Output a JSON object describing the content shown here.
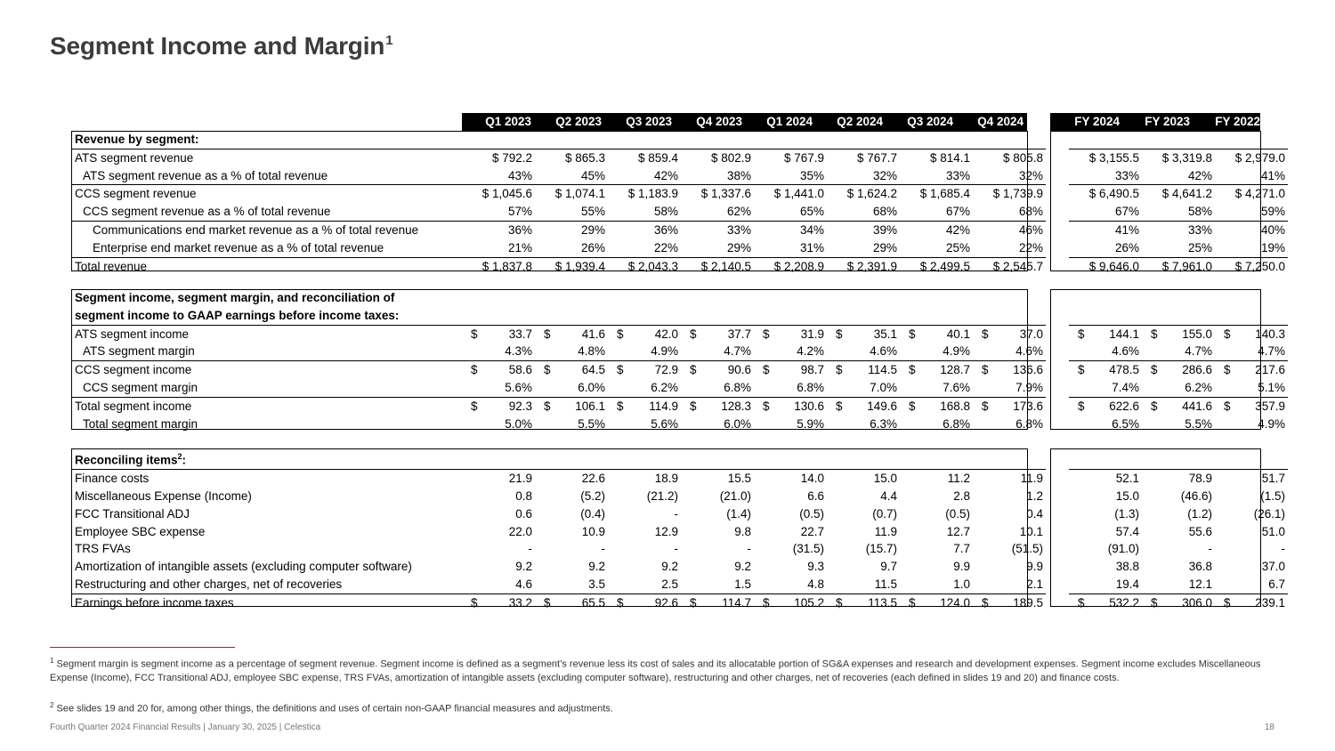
{
  "title": "Segment Income and Margin",
  "title_sup": "1",
  "columns_q": [
    "Q1 2023",
    "Q2 2023",
    "Q3 2023",
    "Q4 2023",
    "Q1 2024",
    "Q2 2024",
    "Q3 2024",
    "Q4 2024"
  ],
  "columns_fy": [
    "FY 2024",
    "FY 2023",
    "FY 2022"
  ],
  "sections": [
    {
      "rows": [
        {
          "label": "Revenue by segment:",
          "bold": true,
          "cells": null
        },
        {
          "label": "ATS segment revenue",
          "dollar": true,
          "top": true,
          "q": [
            "792.2",
            "865.3",
            "859.4",
            "802.9",
            "767.9",
            "767.7",
            "814.1",
            "805.8"
          ],
          "fy": [
            "3,155.5",
            "3,319.8",
            "2,979.0"
          ]
        },
        {
          "label": "ATS segment revenue as a % of total revenue",
          "indent": 1,
          "q": [
            "43%",
            "45%",
            "42%",
            "38%",
            "35%",
            "32%",
            "33%",
            "32%"
          ],
          "fy": [
            "33%",
            "42%",
            "41%"
          ]
        },
        {
          "label": "CCS segment revenue",
          "dollar": true,
          "top": true,
          "q": [
            "1,045.6",
            "1,074.1",
            "1,183.9",
            "1,337.6",
            "1,441.0",
            "1,624.2",
            "1,685.4",
            "1,739.9"
          ],
          "fy": [
            "6,490.5",
            "4,641.2",
            "4,271.0"
          ]
        },
        {
          "label": "CCS segment revenue as a % of total revenue",
          "indent": 1,
          "q": [
            "57%",
            "55%",
            "58%",
            "62%",
            "65%",
            "68%",
            "67%",
            "68%"
          ],
          "fy": [
            "67%",
            "58%",
            "59%"
          ]
        },
        {
          "label": "Communications end market revenue as a % of total revenue",
          "indent": 2,
          "top": true,
          "q": [
            "36%",
            "29%",
            "36%",
            "33%",
            "34%",
            "39%",
            "42%",
            "46%"
          ],
          "fy": [
            "41%",
            "33%",
            "40%"
          ]
        },
        {
          "label": "Enterprise end market revenue as a % of total revenue",
          "indent": 2,
          "q": [
            "21%",
            "26%",
            "22%",
            "29%",
            "31%",
            "29%",
            "25%",
            "22%"
          ],
          "fy": [
            "26%",
            "25%",
            "19%"
          ]
        },
        {
          "label": "Total revenue",
          "dollar": true,
          "top": true,
          "q": [
            "1,837.8",
            "1,939.4",
            "2,043.3",
            "2,140.5",
            "2,208.9",
            "2,391.9",
            "2,499.5",
            "2,545.7"
          ],
          "fy": [
            "9,646.0",
            "7,961.0",
            "7,250.0"
          ]
        }
      ]
    },
    {
      "rows": [
        {
          "label": "Segment income, segment margin, and reconciliation of",
          "bold": true,
          "cells": null
        },
        {
          "label": "segment income to GAAP earnings before income taxes:",
          "bold": true,
          "cells": null
        },
        {
          "label": "ATS segment income",
          "sepdollar": true,
          "top": true,
          "q": [
            "33.7",
            "41.6",
            "42.0",
            "37.7",
            "31.9",
            "35.1",
            "40.1",
            "37.0"
          ],
          "fy": [
            "144.1",
            "155.0",
            "140.3"
          ]
        },
        {
          "label": "ATS segment margin",
          "indent": 1,
          "q": [
            "4.3%",
            "4.8%",
            "4.9%",
            "4.7%",
            "4.2%",
            "4.6%",
            "4.9%",
            "4.6%"
          ],
          "fy": [
            "4.6%",
            "4.7%",
            "4.7%"
          ]
        },
        {
          "label": "CCS segment income",
          "sepdollar": true,
          "top": true,
          "q": [
            "58.6",
            "64.5",
            "72.9",
            "90.6",
            "98.7",
            "114.5",
            "128.7",
            "136.6"
          ],
          "fy": [
            "478.5",
            "286.6",
            "217.6"
          ]
        },
        {
          "label": "CCS segment margin",
          "indent": 1,
          "q": [
            "5.6%",
            "6.0%",
            "6.2%",
            "6.8%",
            "6.8%",
            "7.0%",
            "7.6%",
            "7.9%"
          ],
          "fy": [
            "7.4%",
            "6.2%",
            "5.1%"
          ]
        },
        {
          "label": "Total segment income",
          "sepdollar": true,
          "top": true,
          "q": [
            "92.3",
            "106.1",
            "114.9",
            "128.3",
            "130.6",
            "149.6",
            "168.8",
            "173.6"
          ],
          "fy": [
            "622.6",
            "441.6",
            "357.9"
          ]
        },
        {
          "label": "Total segment margin",
          "indent": 1,
          "q": [
            "5.0%",
            "5.5%",
            "5.6%",
            "6.0%",
            "5.9%",
            "6.3%",
            "6.8%",
            "6.8%"
          ],
          "fy": [
            "6.5%",
            "5.5%",
            "4.9%"
          ]
        }
      ]
    },
    {
      "rows": [
        {
          "label": "Reconciling items",
          "sup": "2",
          "suffix": ":",
          "bold": true,
          "cells": null
        },
        {
          "label": "Finance costs",
          "top": true,
          "q": [
            "21.9",
            "22.6",
            "18.9",
            "15.5",
            "14.0",
            "15.0",
            "11.2",
            "11.9"
          ],
          "fy": [
            "52.1",
            "78.9",
            "51.7"
          ]
        },
        {
          "label": "Miscellaneous Expense (Income)",
          "q": [
            "0.8",
            "(5.2)",
            "(21.2)",
            "(21.0)",
            "6.6",
            "4.4",
            "2.8",
            "1.2"
          ],
          "fy": [
            "15.0",
            "(46.6)",
            "(1.5)"
          ]
        },
        {
          "label": "FCC Transitional ADJ",
          "q": [
            "0.6",
            "(0.4)",
            "-",
            "(1.4)",
            "(0.5)",
            "(0.7)",
            "(0.5)",
            "0.4"
          ],
          "fy": [
            "(1.3)",
            "(1.2)",
            "(26.1)"
          ]
        },
        {
          "label": "Employee SBC expense",
          "q": [
            "22.0",
            "10.9",
            "12.9",
            "9.8",
            "22.7",
            "11.9",
            "12.7",
            "10.1"
          ],
          "fy": [
            "57.4",
            "55.6",
            "51.0"
          ]
        },
        {
          "label": "TRS FVAs",
          "q": [
            "-",
            "-",
            "-",
            "-",
            "(31.5)",
            "(15.7)",
            "7.7",
            "(51.5)"
          ],
          "fy": [
            "(91.0)",
            "-",
            "-"
          ]
        },
        {
          "label": "Amortization of intangible assets (excluding computer software)",
          "q": [
            "9.2",
            "9.2",
            "9.2",
            "9.2",
            "9.3",
            "9.7",
            "9.9",
            "9.9"
          ],
          "fy": [
            "38.8",
            "36.8",
            "37.0"
          ]
        },
        {
          "label": "Restructuring and other charges, net of recoveries",
          "q": [
            "4.6",
            "3.5",
            "2.5",
            "1.5",
            "4.8",
            "11.5",
            "1.0",
            "2.1"
          ],
          "fy": [
            "19.4",
            "12.1",
            "6.7"
          ]
        },
        {
          "label": "Earnings before income taxes",
          "sepdollar": true,
          "top": true,
          "q": [
            "33.2",
            "65.5",
            "92.6",
            "114.7",
            "105.2",
            "113.5",
            "124.0",
            "189.5"
          ],
          "fy": [
            "532.2",
            "306.0",
            "239.1"
          ]
        }
      ]
    }
  ],
  "footnotes": [
    {
      "marker": "1",
      "text": "Segment margin is segment income as a percentage of segment revenue. Segment income is defined as a segment’s revenue less its cost of sales and its allocatable portion of SG&A expenses and research and development expenses. Segment income excludes Miscellaneous Expense (Income), FCC Transitional ADJ, employee SBC expense, TRS FVAs, amortization of intangible assets (excluding computer software), restructuring and other charges, net of recoveries (each defined in slides 19 and 20) and finance costs."
    },
    {
      "marker": "2",
      "text": "See slides 19 and 20 for, among other things, the definitions and uses of certain non-GAAP financial measures and adjustments."
    }
  ],
  "footer_text": "Fourth Quarter 2024 Financial Results | January 30, 2025  |  Celestica",
  "page_number": "18"
}
